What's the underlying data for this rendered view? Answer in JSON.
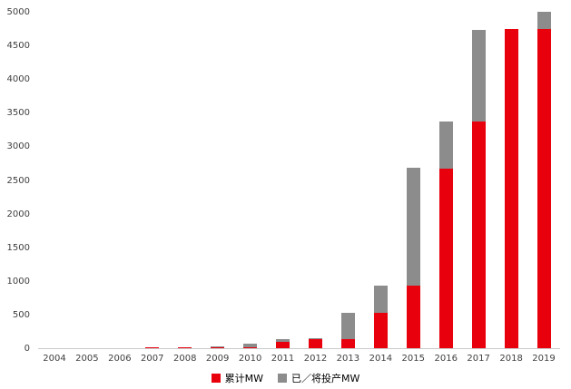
{
  "chart_data": {
    "type": "bar",
    "subtype": "stacked",
    "title": "",
    "xlabel": "",
    "ylabel": "",
    "ylim": [
      0,
      5000
    ],
    "ytick_step": 500,
    "grid": false,
    "legend_position": "bottom-center",
    "categories": [
      "2004",
      "2005",
      "2006",
      "2007",
      "2008",
      "2009",
      "2010",
      "2011",
      "2012",
      "2013",
      "2014",
      "2015",
      "2016",
      "2017",
      "2018",
      "2019"
    ],
    "series": [
      {
        "name": "累计MW",
        "color": "#e8000d",
        "values": [
          0,
          3,
          5,
          8,
          10,
          18,
          20,
          90,
          130,
          135,
          530,
          930,
          2680,
          3380,
          4750,
          4750
        ]
      },
      {
        "name": "已／将投产MW",
        "color": "#8c8c8c",
        "values": [
          0,
          2,
          5,
          5,
          5,
          7,
          55,
          40,
          10,
          395,
          400,
          1750,
          700,
          1370,
          0,
          250
        ]
      }
    ]
  },
  "colors": {
    "axis_line": "#c9c9c9",
    "tick_text": "#404040",
    "background": "#ffffff"
  }
}
